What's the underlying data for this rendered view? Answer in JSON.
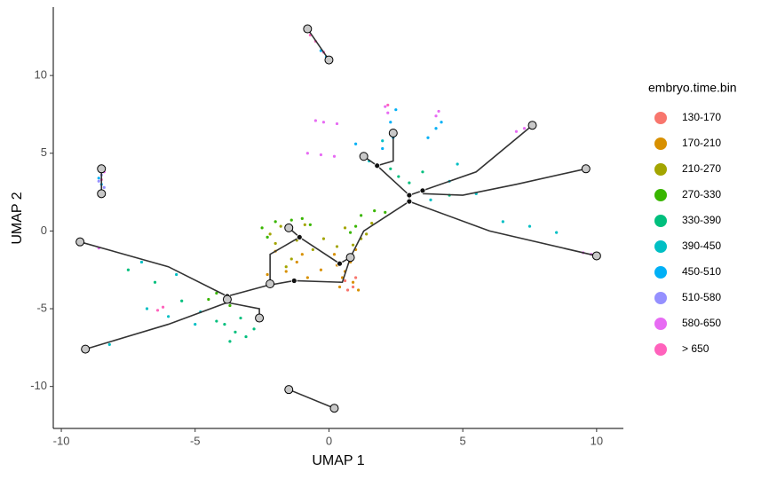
{
  "chart_data": {
    "type": "scatter",
    "xlabel": "UMAP 1",
    "ylabel": "UMAP 2",
    "legend_title": "embryo.time.bin",
    "legend": "right",
    "grid": false,
    "xlim": [
      -10.3,
      11.0
    ],
    "ylim": [
      -12.7,
      14.4
    ],
    "xticks": [
      -10,
      -5,
      0,
      5,
      10
    ],
    "yticks": [
      -10,
      -5,
      0,
      5,
      10
    ],
    "series": [
      {
        "name": "130-170",
        "color": "#F8766D",
        "x": [
          0.6,
          0.9,
          1.0,
          0.7
        ],
        "values": [
          -3.2,
          -3.6,
          -3.0,
          -3.8
        ]
      },
      {
        "name": "170-210",
        "color": "#D89000",
        "x": [
          0.3,
          0.6,
          0.9,
          1.1,
          0.5,
          0.8,
          -0.3,
          -1.2,
          -2.0,
          -1.6,
          -0.8,
          0.2,
          1.0,
          0.4,
          -2.3,
          -1.0
        ],
        "values": [
          -2.2,
          -2.6,
          -3.3,
          -3.8,
          -3.0,
          -2.0,
          -2.5,
          -2.0,
          -1.3,
          -2.6,
          -3.0,
          -1.5,
          -1.2,
          -3.6,
          -2.8,
          -1.5
        ]
      },
      {
        "name": "210-270",
        "color": "#A3A500",
        "x": [
          -1.8,
          -1.2,
          -0.6,
          -2.0,
          -1.4,
          -0.2,
          0.3,
          1.2,
          1.6,
          0.9,
          -2.2,
          -0.9,
          1.4,
          -1.6,
          0.6
        ],
        "values": [
          0.3,
          -0.6,
          -1.2,
          -0.8,
          -1.8,
          -0.5,
          -1.0,
          -0.5,
          0.5,
          -0.9,
          -0.2,
          0.4,
          -0.2,
          -2.3,
          0.2
        ]
      },
      {
        "name": "270-330",
        "color": "#39B600",
        "x": [
          -2.0,
          -1.4,
          -0.7,
          -2.3,
          1.2,
          1.7,
          2.1,
          1.0,
          -4.2,
          -3.7,
          -4.5,
          -1.0,
          0.8,
          -2.5
        ],
        "values": [
          0.6,
          0.7,
          0.4,
          -0.4,
          1.0,
          1.3,
          1.2,
          0.3,
          -4.0,
          -4.8,
          -4.4,
          0.8,
          -0.1,
          0.2
        ]
      },
      {
        "name": "330-390",
        "color": "#00BF7D",
        "x": [
          -3.9,
          -3.5,
          -3.1,
          -2.8,
          -3.7,
          -4.2,
          -3.3,
          2.6,
          3.0,
          3.5,
          2.3,
          -5.5,
          -6.5,
          -7.5,
          4.5
        ],
        "values": [
          -6.0,
          -6.5,
          -6.8,
          -6.3,
          -7.1,
          -5.8,
          -5.6,
          3.5,
          3.1,
          3.8,
          4.0,
          -4.5,
          -3.3,
          -2.5,
          2.3
        ]
      },
      {
        "name": "390-450",
        "color": "#00BFC4",
        "x": [
          -6.8,
          -6.0,
          -5.0,
          -4.8,
          -5.7,
          4.5,
          5.5,
          6.5,
          7.5,
          8.5,
          -8.2,
          3.8,
          4.8,
          2.0,
          1.5,
          -7.0
        ],
        "values": [
          -5.0,
          -5.5,
          -6.0,
          -5.2,
          -2.8,
          3.2,
          2.4,
          0.6,
          0.3,
          -0.1,
          -7.3,
          2.0,
          4.3,
          5.8,
          4.5,
          -2.0
        ]
      },
      {
        "name": "450-510",
        "color": "#00B0F6",
        "x": [
          2.4,
          2.3,
          2.5,
          4.0,
          3.7,
          4.2,
          -0.3,
          -0.1,
          2.0,
          1.0,
          -8.6,
          -8.5
        ],
        "values": [
          6.0,
          7.0,
          7.8,
          6.6,
          6.0,
          7.0,
          11.6,
          11.2,
          5.3,
          5.6,
          3.4,
          3.0
        ]
      },
      {
        "name": "510-580",
        "color": "#9590FF",
        "x": [
          -8.6,
          -8.4,
          -8.5
        ],
        "values": [
          3.2,
          2.8,
          3.6
        ]
      },
      {
        "name": "580-650",
        "color": "#E76BF3",
        "x": [
          -0.5,
          -0.2,
          0.3,
          -0.8,
          -0.3,
          0.2,
          2.1,
          2.2,
          4.1,
          4.0,
          7.0,
          7.3,
          9.5,
          9.8,
          -8.6,
          -8.4
        ],
        "values": [
          7.1,
          7.0,
          6.9,
          5.0,
          4.9,
          4.8,
          8.0,
          7.6,
          7.7,
          7.4,
          6.4,
          6.6,
          -1.4,
          -1.5,
          -1.1,
          3.8
        ]
      },
      {
        "name": "> 650",
        "color": "#FF62BC",
        "x": [
          -0.7,
          -0.5,
          -0.2,
          -8.5,
          -6.2,
          -6.4,
          -2.6,
          2.2
        ],
        "values": [
          12.6,
          12.2,
          11.5,
          3.3,
          -4.9,
          -5.1,
          -5.4,
          8.1
        ]
      }
    ],
    "trajectory_color": "#333333",
    "trajectory": [
      {
        "x": [
          -9.3,
          -6,
          -3.8,
          -2.3,
          -1.3,
          0.5,
          0.8
        ],
        "values": [
          -0.7,
          -2.3,
          -4.2,
          -3.5,
          -3.2,
          -3.3,
          -1.7
        ]
      },
      {
        "x": [
          -9.1,
          -6,
          -3.8,
          -2.6,
          -2.6
        ],
        "values": [
          -7.6,
          -6,
          -4.6,
          -5,
          -5.6
        ]
      },
      {
        "x": [
          -2.2,
          -2.2,
          -1.1,
          0.4,
          0.8,
          1.3,
          3
        ],
        "values": [
          -3.6,
          -1.5,
          -0.4,
          -2.1,
          -1.7,
          0,
          1.9
        ]
      },
      {
        "x": [
          -1.5,
          -1.1
        ],
        "values": [
          0.2,
          -0.4
        ]
      },
      {
        "x": [
          3,
          3,
          1.8,
          1.3
        ],
        "values": [
          1.9,
          2.3,
          4.2,
          4.8
        ]
      },
      {
        "x": [
          1.8,
          2.4,
          2.4
        ],
        "values": [
          4.2,
          4.5,
          6.3
        ]
      },
      {
        "x": [
          3,
          3.5,
          5.5,
          7.6
        ],
        "values": [
          2.3,
          2.6,
          3.8,
          6.8
        ]
      },
      {
        "x": [
          3.5,
          5,
          7,
          9.6
        ],
        "values": [
          2.4,
          2.3,
          3,
          4
        ]
      },
      {
        "x": [
          3,
          6,
          10
        ],
        "values": [
          1.9,
          0,
          -1.6
        ]
      },
      {
        "x": [
          -0.8,
          0
        ],
        "values": [
          13,
          11
        ]
      },
      {
        "x": [
          -8.5,
          -8.5
        ],
        "values": [
          4,
          2.4
        ]
      },
      {
        "x": [
          -1.5,
          0.2
        ],
        "values": [
          -10.2,
          -11.4
        ]
      }
    ],
    "nodes": {
      "x": [
        -0.8,
        0,
        -8.5,
        -8.5,
        -9.3,
        -9.1,
        10,
        9.6,
        7.6,
        2.4,
        1.3,
        -1.5,
        -2.6,
        -1.5,
        0.2,
        0.8,
        -3.8,
        -2.2
      ],
      "values": [
        13,
        11,
        4,
        2.4,
        -0.7,
        -7.6,
        -1.6,
        4,
        6.8,
        6.3,
        4.8,
        0.2,
        -5.6,
        -10.2,
        -11.4,
        -1.7,
        -4.4,
        -3.4
      ]
    },
    "branch_points": {
      "x": [
        1.8,
        3,
        3,
        3.5,
        -1.1,
        0.4,
        -1.3,
        -3.8
      ],
      "values": [
        4.2,
        1.9,
        2.3,
        2.6,
        -0.4,
        -2.1,
        -3.2,
        -4.2
      ]
    }
  }
}
